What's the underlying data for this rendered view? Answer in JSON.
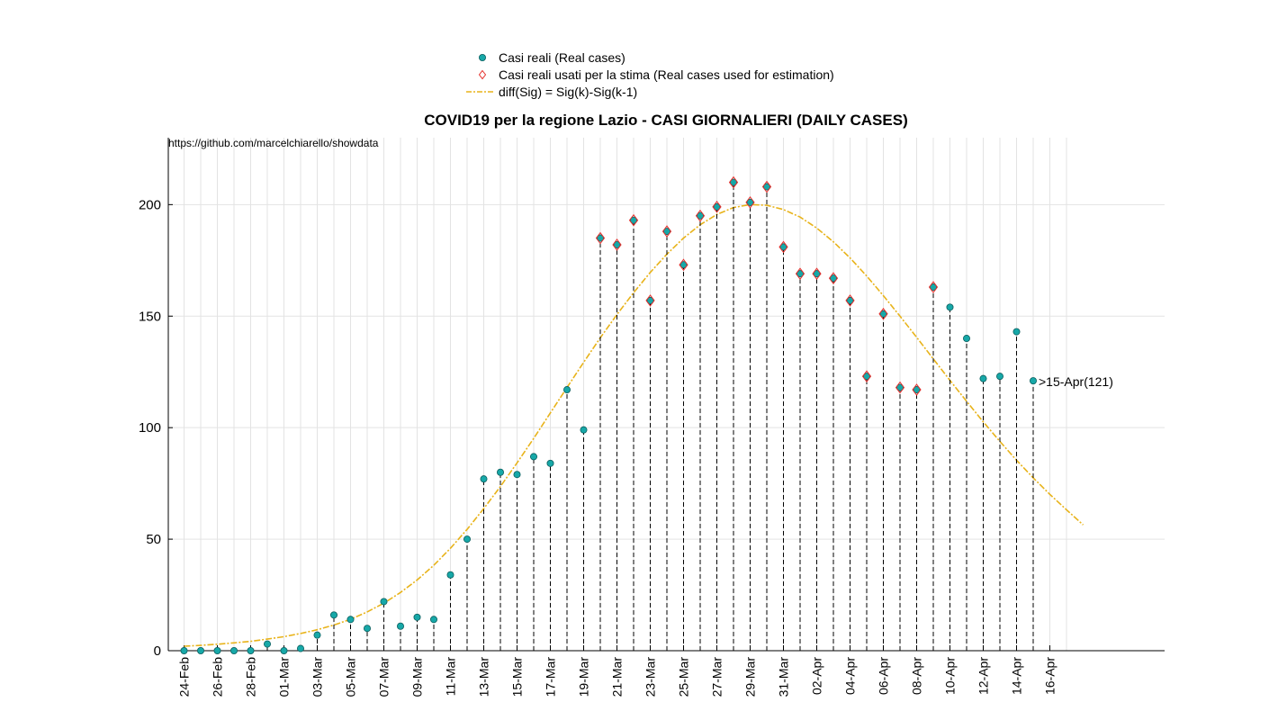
{
  "title": "COVID19 per la regione Lazio - CASI GIORNALIERI (DAILY CASES)",
  "source_url": "https://github.com/marcelchiarello/showdata",
  "legend": [
    {
      "label": "Casi reali (Real cases)",
      "symbol": "circle"
    },
    {
      "label": "Casi reali usati per la stima (Real cases used for estimation)",
      "symbol": "diamond"
    },
    {
      "label": "diff(Sig) = Sig(k)-Sig(k-1)",
      "symbol": "dashdot-line"
    }
  ],
  "colors": {
    "real": "#17a8a8",
    "real_edge": "#0b5e5e",
    "estimation": "#e5302c",
    "fit": "#e8b31a",
    "grid": "#e3e3e3",
    "stem": "#000000"
  },
  "chart_data": {
    "type": "scatter",
    "title": "COVID19 per la regione Lazio - CASI GIORNALIERI (DAILY CASES)",
    "xlabel": "",
    "ylabel": "",
    "ylim": [
      0,
      230
    ],
    "yticks": [
      0,
      50,
      100,
      150,
      200
    ],
    "grid": true,
    "legend_position": "top-center",
    "x_tick_labels": [
      "24-Feb",
      "26-Feb",
      "28-Feb",
      "01-Mar",
      "03-Mar",
      "05-Mar",
      "07-Mar",
      "09-Mar",
      "11-Mar",
      "13-Mar",
      "15-Mar",
      "17-Mar",
      "19-Mar",
      "21-Mar",
      "23-Mar",
      "25-Mar",
      "27-Mar",
      "29-Mar",
      "31-Mar",
      "02-Apr",
      "04-Apr",
      "06-Apr",
      "08-Apr",
      "10-Apr",
      "12-Apr",
      "14-Apr",
      "16-Apr"
    ],
    "dates": [
      "24-Feb",
      "25-Feb",
      "26-Feb",
      "27-Feb",
      "28-Feb",
      "29-Feb",
      "01-Mar",
      "02-Mar",
      "03-Mar",
      "04-Mar",
      "05-Mar",
      "06-Mar",
      "07-Mar",
      "08-Mar",
      "09-Mar",
      "10-Mar",
      "11-Mar",
      "12-Mar",
      "13-Mar",
      "14-Mar",
      "15-Mar",
      "16-Mar",
      "17-Mar",
      "18-Mar",
      "19-Mar",
      "20-Mar",
      "21-Mar",
      "22-Mar",
      "23-Mar",
      "24-Mar",
      "25-Mar",
      "26-Mar",
      "27-Mar",
      "28-Mar",
      "29-Mar",
      "30-Mar",
      "31-Mar",
      "01-Apr",
      "02-Apr",
      "03-Apr",
      "04-Apr",
      "05-Apr",
      "06-Apr",
      "07-Apr",
      "08-Apr",
      "09-Apr",
      "10-Apr",
      "11-Apr",
      "12-Apr",
      "13-Apr",
      "14-Apr",
      "15-Apr"
    ],
    "series": [
      {
        "name": "Casi reali (Real cases)",
        "values": [
          0,
          0,
          0,
          0,
          0,
          3,
          0,
          1,
          7,
          16,
          14,
          10,
          22,
          11,
          15,
          14,
          34,
          50,
          77,
          80,
          79,
          87,
          84,
          117,
          99,
          185,
          182,
          193,
          157,
          188,
          173,
          195,
          199,
          210,
          201,
          208,
          181,
          169,
          169,
          167,
          157,
          123,
          151,
          118,
          117,
          163,
          154,
          140,
          122,
          123,
          143,
          121
        ]
      },
      {
        "name": "Casi reali usati per la stima (Real cases used for estimation)",
        "start_date": "20-Mar",
        "values": [
          185,
          182,
          193,
          157,
          188,
          173,
          195,
          199,
          210,
          201,
          208,
          181,
          169,
          169,
          167,
          157,
          123,
          151,
          118,
          117,
          163
        ]
      },
      {
        "name": "diff(Sig) = Sig(k)-Sig(k-1)",
        "start_date": "24-Feb",
        "values": [
          2,
          2.4,
          2.9,
          3.5,
          4.2,
          5.2,
          6.3,
          7.7,
          9.4,
          11.5,
          14.1,
          17.4,
          21.3,
          26.1,
          31.7,
          38.3,
          45.9,
          54.4,
          63.7,
          73.6,
          84.2,
          95.2,
          106.6,
          118.0,
          129.3,
          140.3,
          150.7,
          160.5,
          169.6,
          177.8,
          185.0,
          191.0,
          195.6,
          198.7,
          200.0,
          199.7,
          197.8,
          194.4,
          189.5,
          183.3,
          176.1,
          168.0,
          159.2,
          150.0,
          140.5,
          130.8,
          121.2,
          111.8,
          102.6,
          93.8,
          85.4,
          77.5,
          70.1,
          63.2,
          56.4
        ]
      }
    ],
    "annotations": [
      {
        "text": ">15-Apr(121)",
        "date": "15-Apr",
        "value": 121
      }
    ]
  }
}
